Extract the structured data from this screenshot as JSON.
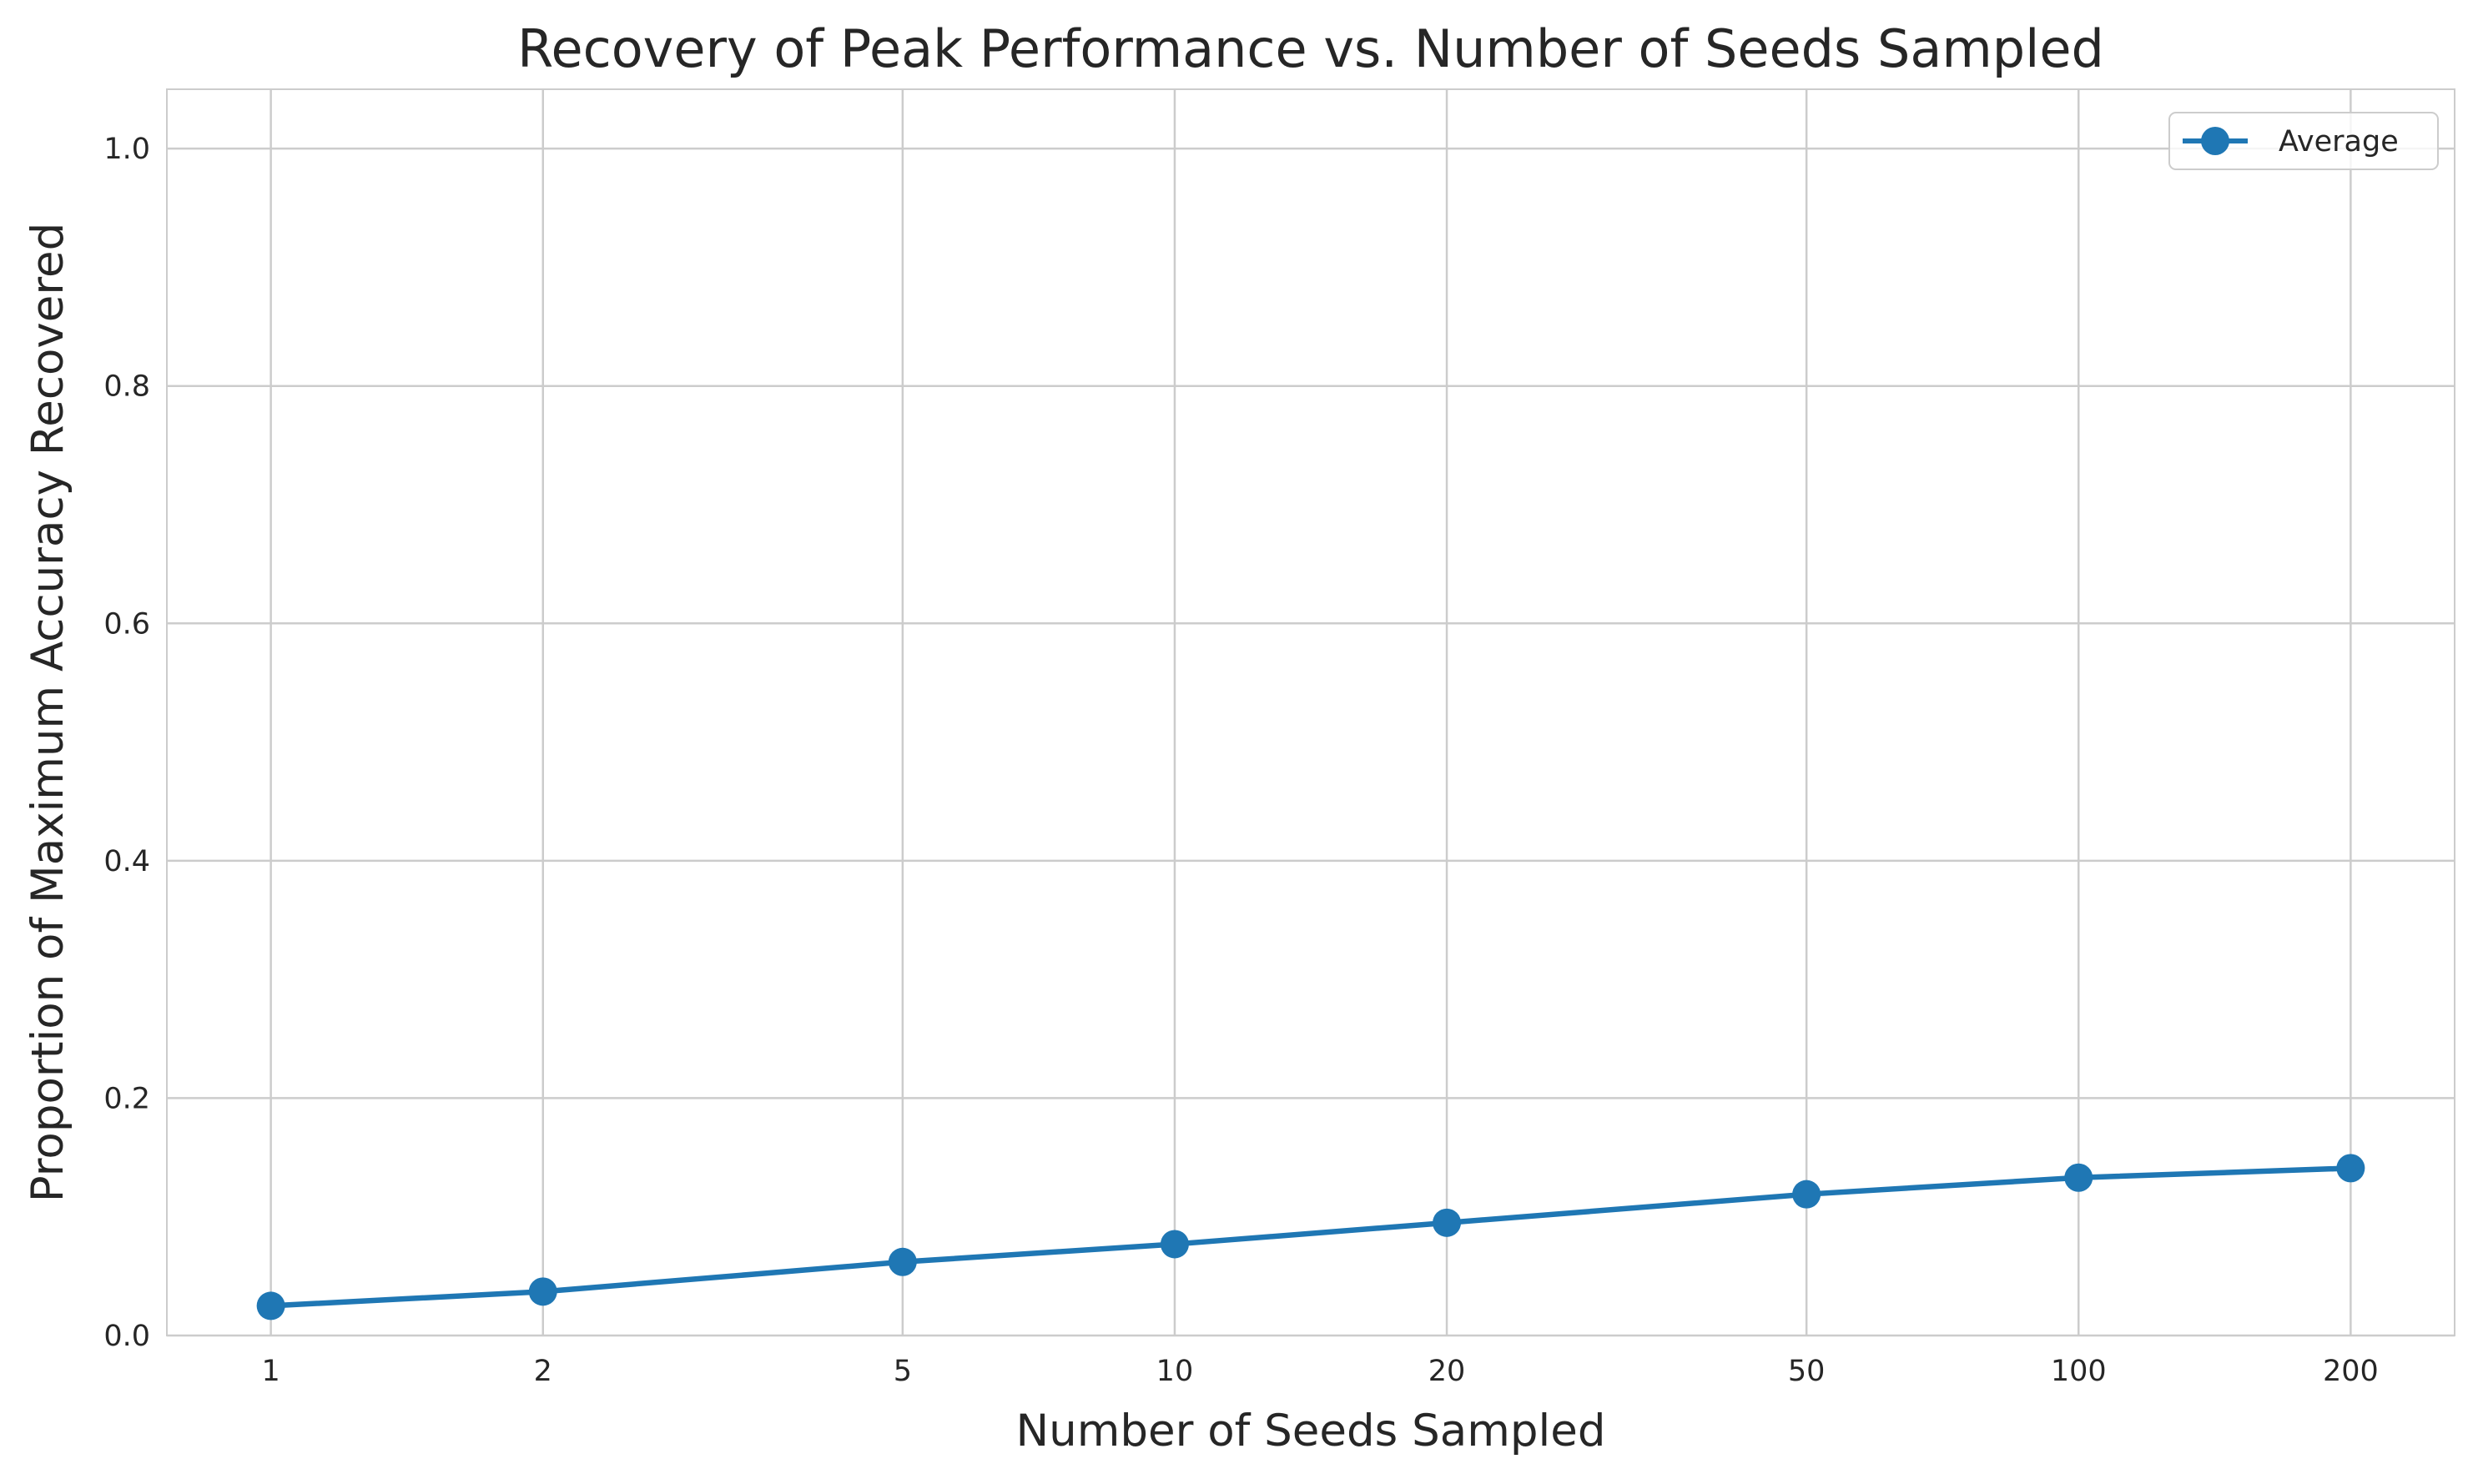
{
  "chart_data": {
    "type": "line",
    "title": "Recovery of Peak Performance vs. Number of Seeds Sampled",
    "xlabel": "Number of Seeds Sampled",
    "ylabel": "Proportion of Maximum Accuracy Recovered",
    "x_scale": "log",
    "x": [
      1,
      2,
      5,
      10,
      20,
      50,
      100,
      200
    ],
    "x_tick_labels": [
      "1",
      "2",
      "5",
      "10",
      "20",
      "50",
      "100",
      "200"
    ],
    "ylim": [
      0,
      1.05
    ],
    "y_ticks": [
      0.0,
      0.2,
      0.4,
      0.6,
      0.8,
      1.0
    ],
    "y_tick_labels": [
      "0.0",
      "0.2",
      "0.4",
      "0.6",
      "0.8",
      "1.0"
    ],
    "grid": true,
    "legend_position": "top-right",
    "series": [
      {
        "name": "Average",
        "color": "#1f77b4",
        "marker": "circle",
        "values": [
          0.025,
          0.037,
          0.062,
          0.077,
          0.095,
          0.119,
          0.133,
          0.141
        ]
      }
    ]
  }
}
